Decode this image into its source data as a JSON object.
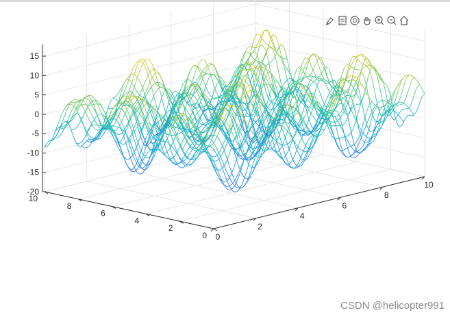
{
  "toolbar": {
    "icons": [
      "brush-icon",
      "data-cursor-icon",
      "rotate-3d-icon",
      "pan-hand-icon",
      "zoom-in-icon",
      "zoom-out-icon",
      "home-icon"
    ]
  },
  "watermark": "CSDN @helicopter991",
  "colors": {
    "low": "#2a7fe0",
    "mid": "#1fcfb0",
    "high": "#f2e640",
    "axis": "#262626",
    "grid": "#e6e6e6"
  },
  "chart_data": {
    "type": "mesh",
    "x_range": [
      0,
      10
    ],
    "y_range": [
      0,
      10
    ],
    "z_range": [
      -20,
      18
    ],
    "x_ticks": [
      0,
      2,
      4,
      6,
      8,
      10
    ],
    "y_ticks": [
      0,
      2,
      4,
      6,
      8,
      10
    ],
    "z_ticks": [
      -20,
      -15,
      -10,
      -5,
      0,
      5,
      10,
      15
    ],
    "grid": true,
    "colormap": "parula",
    "surface_sample": {
      "note_free": true,
      "x_samples": 41,
      "y_samples": 41
    }
  }
}
